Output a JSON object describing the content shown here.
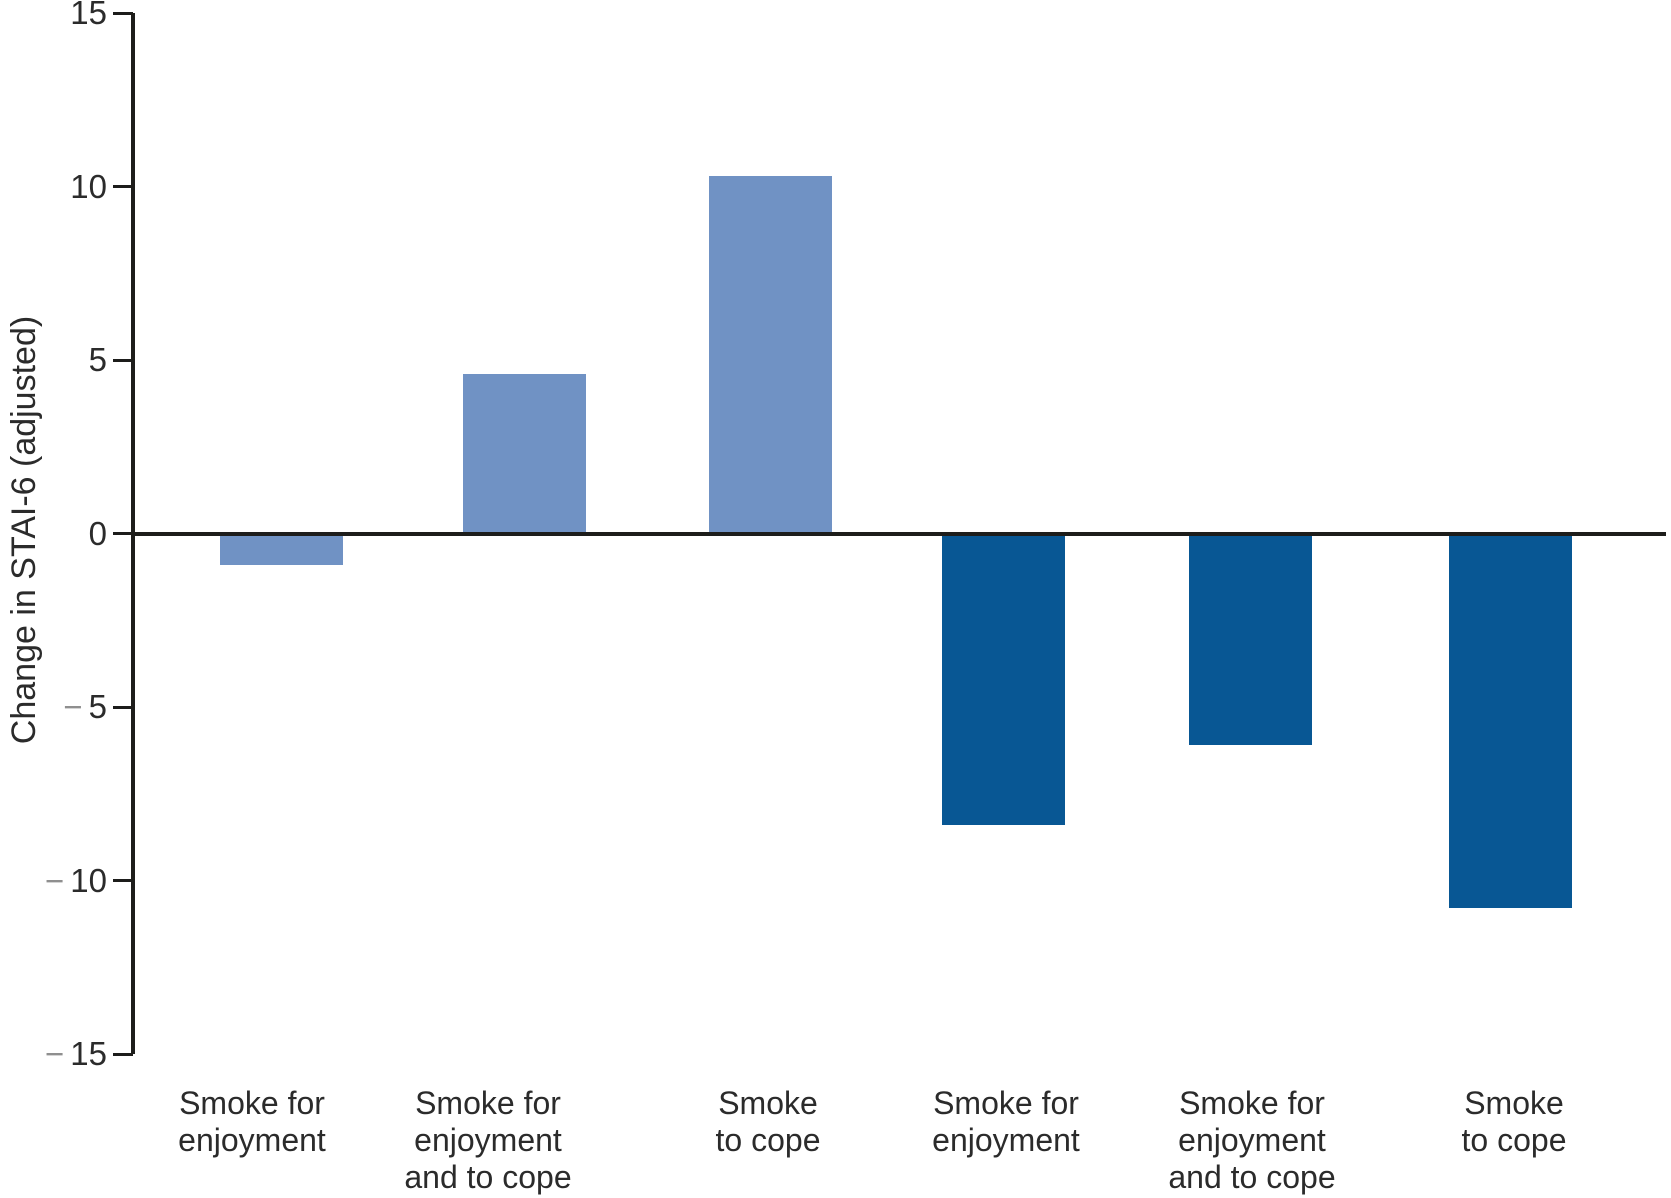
{
  "chart_data": {
    "type": "bar",
    "title": "",
    "xlabel": "",
    "ylabel": "Change in STAI-6 (adjusted)",
    "ylim": [
      -15,
      15
    ],
    "yticks": [
      15,
      10,
      5,
      0,
      -5,
      -10,
      -15
    ],
    "ytick_labels": [
      "15",
      "10",
      "5",
      "0",
      "−5",
      "−10",
      "−15"
    ],
    "grid": false,
    "legend": "none",
    "categories": [
      "Smoke for enjoyment",
      "Smoke for enjoyment and to cope",
      "Smoke to cope",
      "Smoke for enjoyment",
      "Smoke for enjoyment and to cope",
      "Smoke to cope"
    ],
    "category_lines": [
      [
        "Smoke for",
        "enjoyment"
      ],
      [
        "Smoke for",
        "enjoyment",
        "and to cope"
      ],
      [
        "Smoke",
        "to cope"
      ],
      [
        "Smoke for",
        "enjoyment"
      ],
      [
        "Smoke for",
        "enjoyment",
        "and to cope"
      ],
      [
        "Smoke",
        "to cope"
      ]
    ],
    "values": [
      -0.9,
      4.6,
      10.3,
      -8.4,
      -6.1,
      -10.8
    ],
    "series": [
      {
        "name": "light-blue-group",
        "bar_indexes": [
          0,
          1,
          2
        ],
        "color": "#7092c4"
      },
      {
        "name": "dark-blue-group",
        "bar_indexes": [
          3,
          4,
          5
        ],
        "color": "#085794"
      }
    ],
    "bar_color_groups": [
      "light",
      "light",
      "light",
      "dark",
      "dark",
      "dark"
    ],
    "colors": {
      "light": "#7092c4",
      "dark": "#085794",
      "axis": "#1d1d1b",
      "text": "#2b2b2b",
      "minus_sign": "#8f8f8f"
    }
  }
}
